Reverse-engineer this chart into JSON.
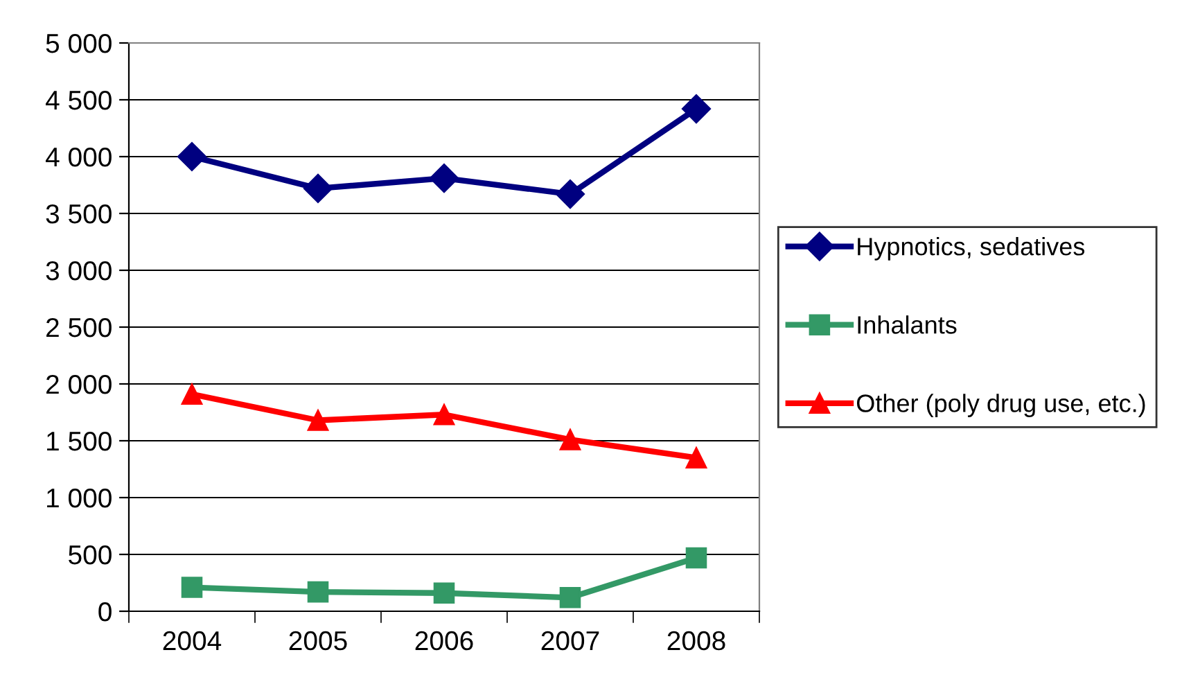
{
  "chart_data": {
    "type": "line",
    "categories": [
      "2004",
      "2005",
      "2006",
      "2007",
      "2008"
    ],
    "series": [
      {
        "name": "Hypnotics, sedatives",
        "color": "#000080",
        "marker": "diamond",
        "values": [
          4000,
          3720,
          3810,
          3670,
          4420
        ]
      },
      {
        "name": "Inhalants",
        "color": "#339966",
        "marker": "square",
        "values": [
          210,
          170,
          160,
          120,
          470
        ]
      },
      {
        "name": "Other (poly drug use, etc.)",
        "color": "#ff0000",
        "marker": "triangle",
        "values": [
          1910,
          1680,
          1730,
          1510,
          1350
        ]
      }
    ],
    "ylim": [
      0,
      5000
    ],
    "yticks": [
      0,
      500,
      {
        "value": 1000,
        "label": "1 000"
      },
      {
        "value": 1500,
        "label": "1 500"
      },
      {
        "value": 2000,
        "label": "2 000"
      },
      {
        "value": 2500,
        "label": "2 500"
      },
      {
        "value": 3000,
        "label": "3 000"
      },
      {
        "value": 3500,
        "label": "3 500"
      },
      {
        "value": 4000,
        "label": "4 000"
      },
      {
        "value": 4500,
        "label": "4 500"
      },
      {
        "value": 5000,
        "label": "5 000"
      }
    ],
    "grid": "y",
    "legend": "right",
    "line_style": "solid"
  }
}
